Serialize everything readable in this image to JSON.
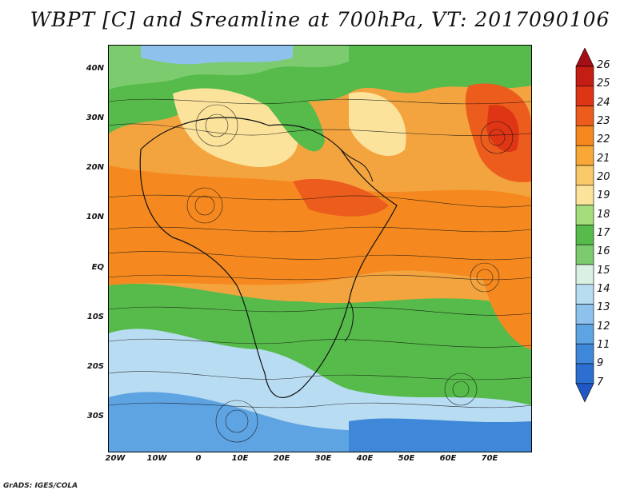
{
  "title": "WBPT [C] and Sreamline at 700hPa, VT: 2017090106",
  "credit": "GrADS: IGES/COLA",
  "lat_axis": [
    "40N",
    "30N",
    "20N",
    "10N",
    "EQ",
    "10S",
    "20S",
    "30S"
  ],
  "lon_axis": [
    "20W",
    "10W",
    "0",
    "10E",
    "20E",
    "30E",
    "40E",
    "50E",
    "60E",
    "70E"
  ],
  "colorbar": {
    "labels": [
      "26",
      "25",
      "24",
      "23",
      "22",
      "21",
      "20",
      "19",
      "18",
      "17",
      "16",
      "15",
      "14",
      "13",
      "12",
      "11",
      "9",
      "7"
    ],
    "colors": [
      "#a50f15",
      "#c41d14",
      "#de3515",
      "#ec5c1c",
      "#f5891f",
      "#f7a836",
      "#f9c868",
      "#fbe39c",
      "#a6dd7c",
      "#56bb4a",
      "#7ccb6e",
      "#d9f0e2",
      "#b8dcf2",
      "#8ec2ec",
      "#5ea3e2",
      "#3f87d8",
      "#2d6fd0",
      "#1f58c4"
    ]
  }
}
